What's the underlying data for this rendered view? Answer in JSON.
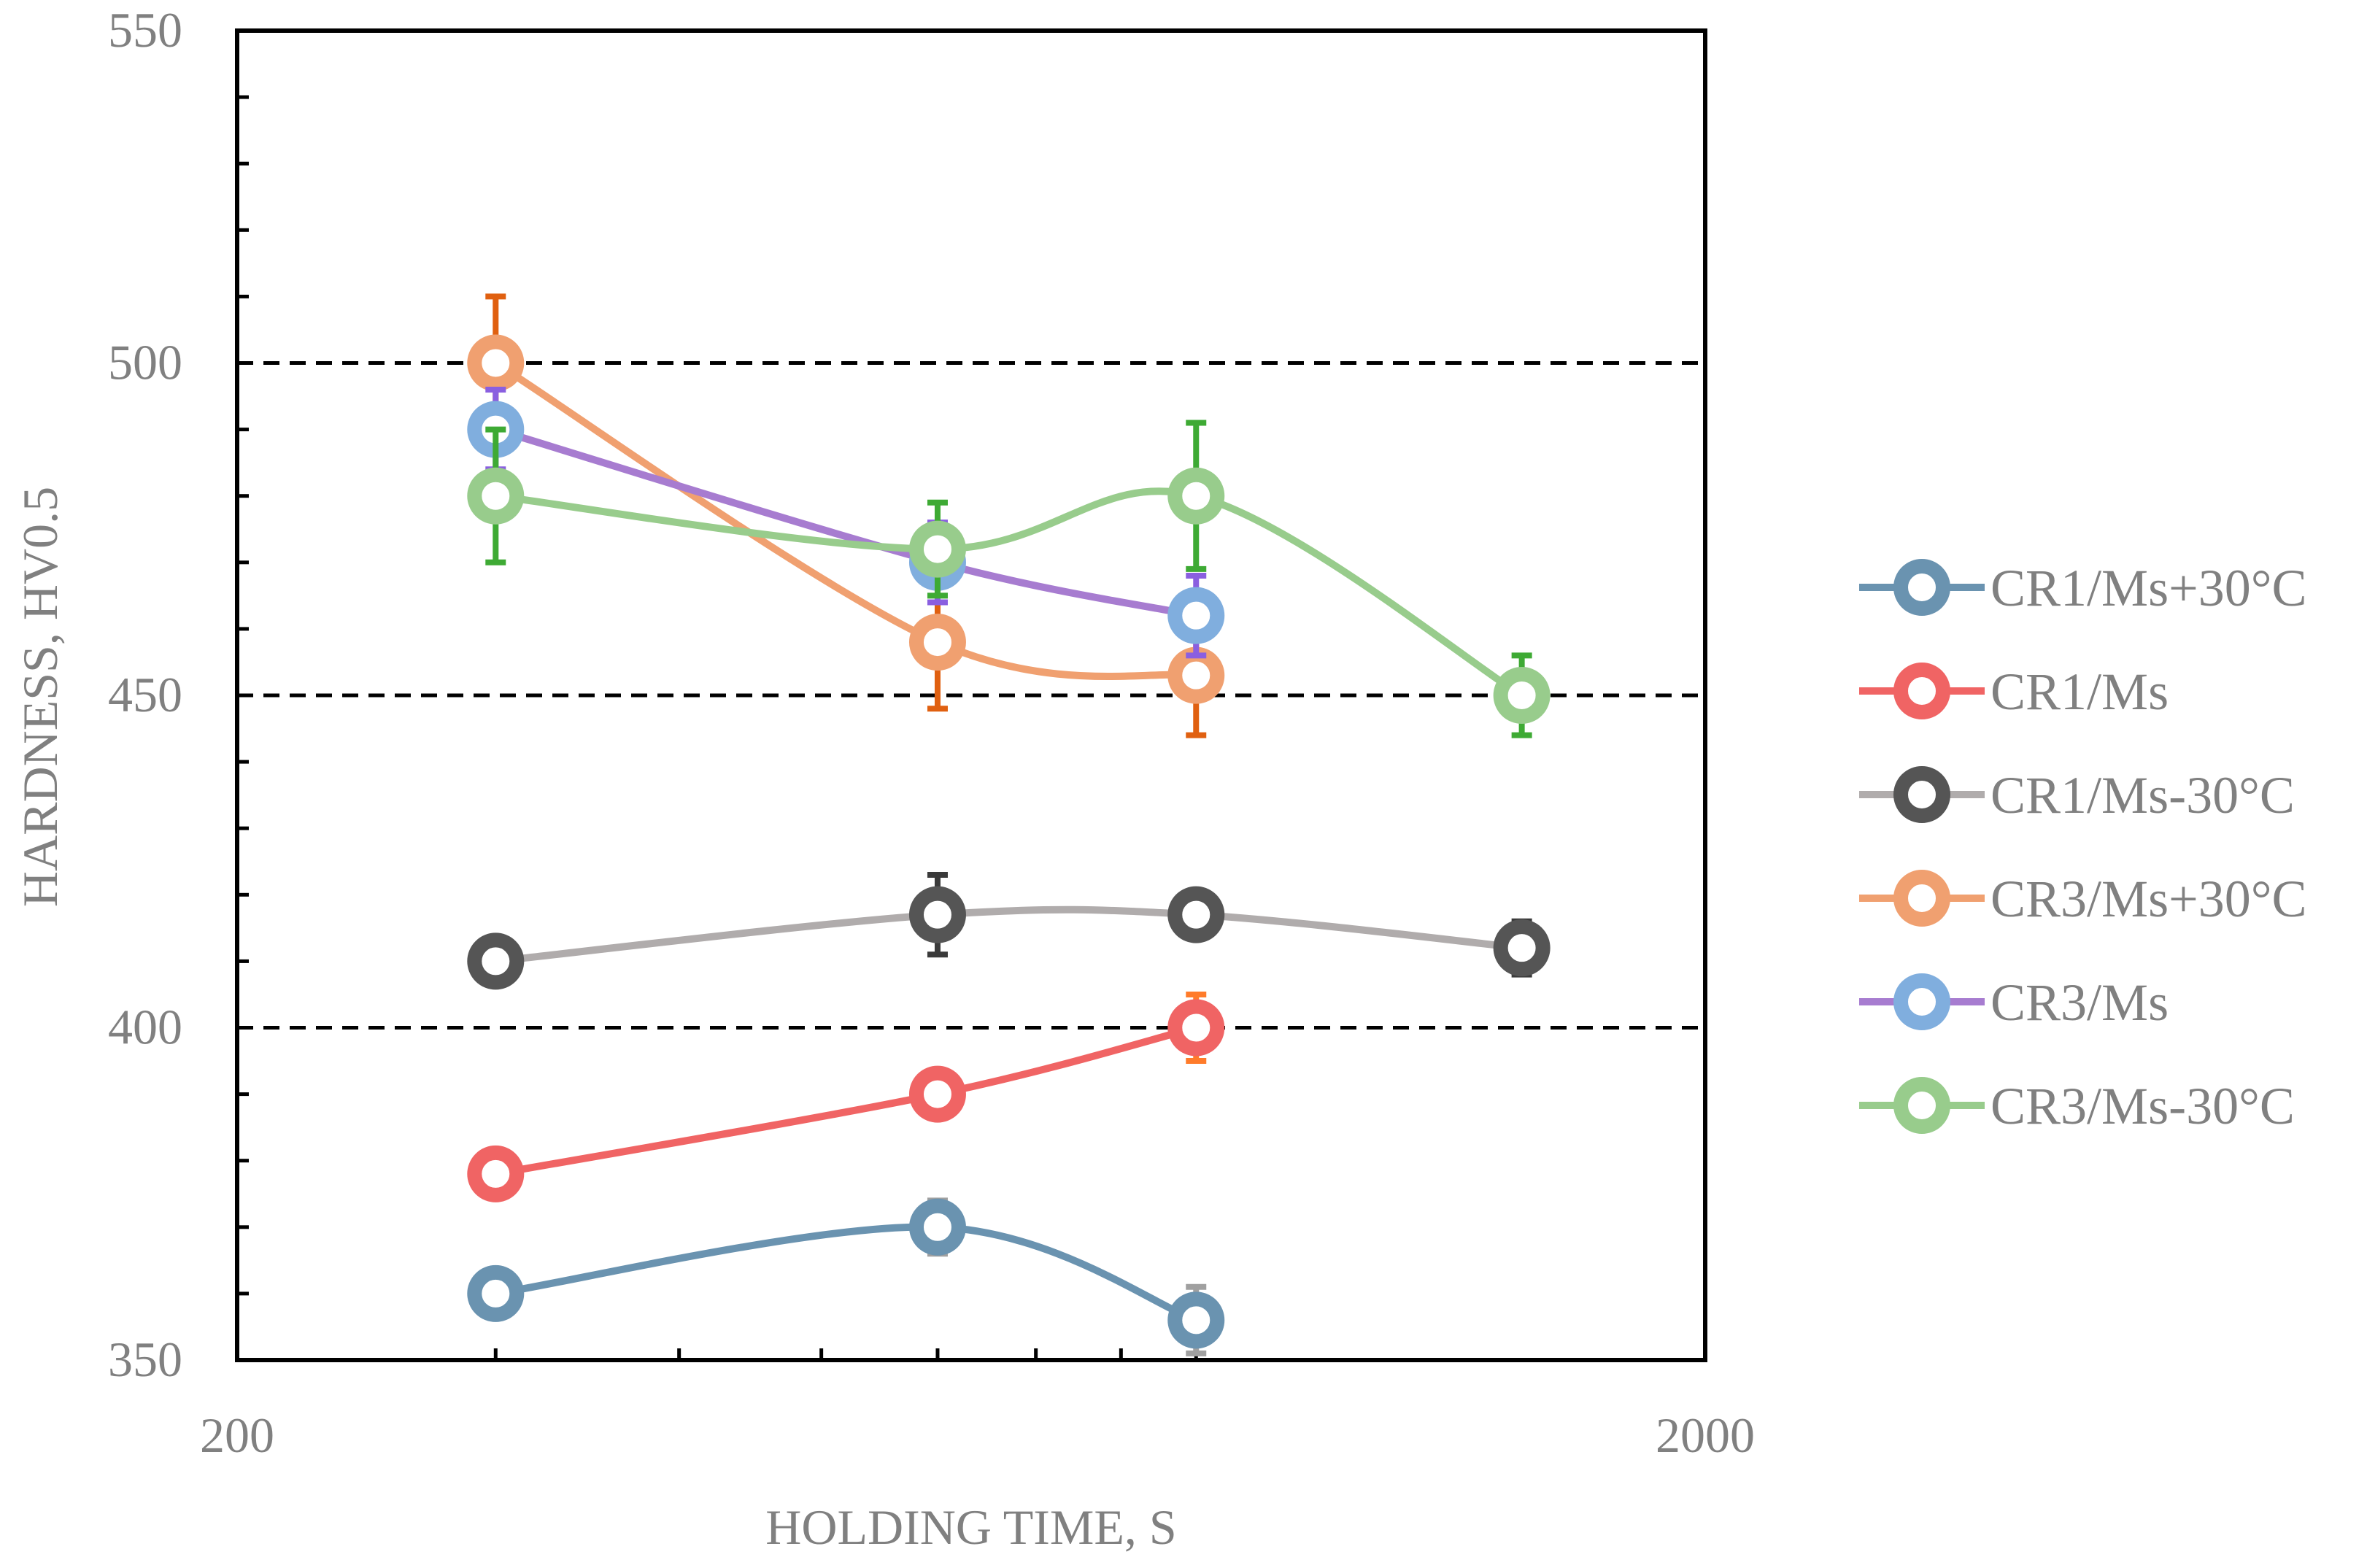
{
  "chart_data": {
    "type": "line",
    "xlabel": "HOLDING TIME, S",
    "ylabel": "HARDNESS, HV0.5",
    "xscale": "log",
    "xlim": [
      200,
      2000
    ],
    "ylim": [
      350,
      550
    ],
    "x_tick_labels": [
      "200",
      "2000"
    ],
    "y_ticks": [
      350,
      400,
      450,
      500,
      550
    ],
    "y_tick_labels": [
      "350",
      "400",
      "450",
      "500",
      "550"
    ],
    "gridlines_dashed_y": [
      400,
      450,
      500
    ],
    "legend_position": "right",
    "series": [
      {
        "name": "CR1/Ms+30°C",
        "color": "#6a93b0",
        "error_color": "#a0a0a0",
        "points": [
          {
            "x": 300,
            "y": 360,
            "err": 2
          },
          {
            "x": 600,
            "y": 370,
            "err": 4
          },
          {
            "x": 900,
            "y": 356,
            "err": 5
          }
        ]
      },
      {
        "name": "CR1/Ms",
        "color": "#f06464",
        "error_color": "#ff7b2a",
        "points": [
          {
            "x": 300,
            "y": 378,
            "err": 2
          },
          {
            "x": 600,
            "y": 390,
            "err": 2
          },
          {
            "x": 900,
            "y": 400,
            "err": 5
          }
        ]
      },
      {
        "name": "CR1/Ms-30°C",
        "color": "#b0acac",
        "marker_color": "#555555",
        "error_color": "#3a3a3a",
        "points": [
          {
            "x": 300,
            "y": 410,
            "err": 2
          },
          {
            "x": 600,
            "y": 417,
            "err": 6
          },
          {
            "x": 900,
            "y": 417,
            "err": 2
          },
          {
            "x": 1500,
            "y": 412,
            "err": 4
          }
        ]
      },
      {
        "name": "CR3/Ms+30°C",
        "color": "#f0a070",
        "error_color": "#e06010",
        "points": [
          {
            "x": 300,
            "y": 500,
            "err": 10
          },
          {
            "x": 600,
            "y": 458,
            "err": 10
          },
          {
            "x": 900,
            "y": 453,
            "err": 9
          }
        ]
      },
      {
        "name": "CR3/Ms",
        "color": "#a77cd0",
        "marker_color": "#80aede",
        "error_color": "#8a5fe0",
        "points": [
          {
            "x": 300,
            "y": 490,
            "err": 6
          },
          {
            "x": 600,
            "y": 470,
            "err": 6
          },
          {
            "x": 900,
            "y": 462,
            "err": 6
          }
        ]
      },
      {
        "name": "CR3/Ms-30°C",
        "color": "#98cc8c",
        "error_color": "#3eaa34",
        "points": [
          {
            "x": 300,
            "y": 480,
            "err": 10
          },
          {
            "x": 600,
            "y": 472,
            "err": 7
          },
          {
            "x": 900,
            "y": 480,
            "err": 11
          },
          {
            "x": 1500,
            "y": 450,
            "err": 6
          }
        ]
      }
    ]
  }
}
